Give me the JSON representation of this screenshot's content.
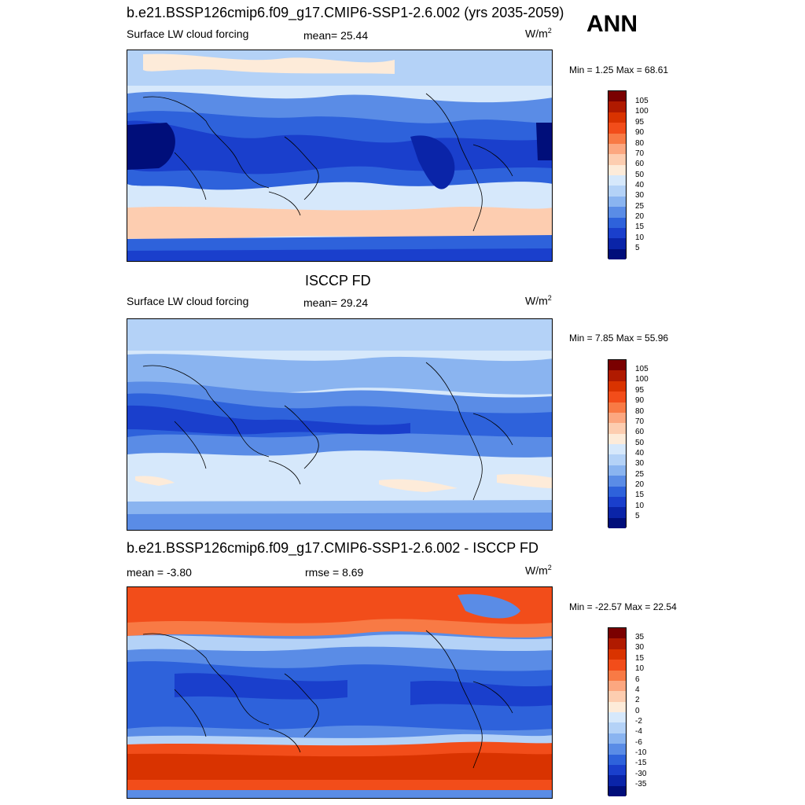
{
  "title_main": "b.e21.BSSP126cmip6.f09_g17.CMIP6-SSP1-2.6.002 (yrs 2035-2059)",
  "season": "ANN",
  "panels": [
    {
      "id": "model",
      "header": "",
      "left_label": "Surface LW cloud forcing",
      "center_label": "mean=  25.44",
      "units": "W/m",
      "units_sup": "2",
      "minmax": "Min =   1.25 Max =  68.61",
      "colorbar_labels": [
        "105",
        "100",
        "95",
        "90",
        "80",
        "70",
        "60",
        "50",
        "40",
        "30",
        "25",
        "20",
        "15",
        "10",
        "5"
      ]
    },
    {
      "id": "obs",
      "header": "ISCCP FD",
      "left_label": "Surface LW cloud forcing",
      "center_label": "mean=  29.24",
      "units": "W/m",
      "units_sup": "2",
      "minmax": "Min =   7.85 Max =  55.96",
      "colorbar_labels": [
        "105",
        "100",
        "95",
        "90",
        "80",
        "70",
        "60",
        "50",
        "40",
        "30",
        "25",
        "20",
        "15",
        "10",
        "5"
      ]
    },
    {
      "id": "diff",
      "header": "b.e21.BSSP126cmip6.f09_g17.CMIP6-SSP1-2.6.002 - ISCCP FD",
      "left_label": "mean =  -3.80",
      "center_label": "rmse =   8.69",
      "units": "W/m",
      "units_sup": "2",
      "minmax": "Min = -22.57 Max =  22.54",
      "colorbar_labels": [
        "35",
        "30",
        "15",
        "10",
        "6",
        "4",
        "2",
        "0",
        "-2",
        "-4",
        "-6",
        "-10",
        "-15",
        "-30",
        "-35"
      ]
    }
  ],
  "colors": {
    "scale": [
      "#7a0000",
      "#b01a00",
      "#d93300",
      "#f24d1a",
      "#f87a45",
      "#fca780",
      "#fdcdb0",
      "#fdebd9",
      "#d6e8fb",
      "#b4d2f7",
      "#8ab4f0",
      "#5a8ce6",
      "#2e62db",
      "#1a3fcc",
      "#0a24a8",
      "#000e7a"
    ]
  }
}
